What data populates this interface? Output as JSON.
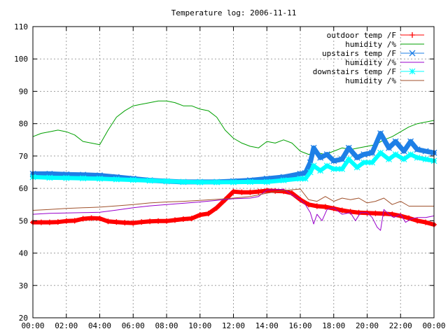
{
  "chart_data": {
    "type": "line",
    "title": "Temperature log: 2006-11-11",
    "xlabel": "",
    "ylabel": "",
    "xlim": [
      0,
      24
    ],
    "ylim": [
      20,
      110
    ],
    "grid": true,
    "legend_position": "top-right",
    "x_ticks": [
      "00:00",
      "02:00",
      "04:00",
      "06:00",
      "08:00",
      "10:00",
      "12:00",
      "14:00",
      "16:00",
      "18:00",
      "20:00",
      "22:00",
      "00:00"
    ],
    "y_ticks": [
      "20",
      "30",
      "40",
      "50",
      "60",
      "70",
      "80",
      "90",
      "100",
      "110"
    ],
    "series": [
      {
        "name": "outdoor temp /F",
        "color": "#ff0000",
        "marker": "plus",
        "width": 6,
        "x": [
          0,
          0.5,
          1,
          1.5,
          2,
          2.5,
          3,
          3.5,
          4,
          4.5,
          5,
          5.5,
          6,
          6.5,
          7,
          7.5,
          8,
          8.5,
          9,
          9.5,
          10,
          10.5,
          11,
          11.5,
          12,
          12.5,
          13,
          13.5,
          14,
          14.5,
          15,
          15.5,
          16,
          16.5,
          17,
          17.5,
          18,
          18.5,
          19,
          19.5,
          20,
          20.5,
          21,
          21.5,
          22,
          22.5,
          23,
          23.5,
          24
        ],
        "values": [
          49.5,
          49.5,
          49.5,
          49.6,
          49.9,
          50.0,
          50.6,
          50.8,
          50.7,
          49.8,
          49.6,
          49.4,
          49.3,
          49.6,
          49.8,
          49.9,
          49.9,
          50.2,
          50.5,
          50.7,
          51.8,
          52.2,
          54.0,
          56.5,
          59.0,
          58.8,
          58.8,
          59.0,
          59.3,
          59.2,
          59.1,
          58.5,
          56.5,
          55.0,
          54.5,
          54.3,
          53.8,
          53.2,
          52.8,
          52.5,
          52.4,
          52.3,
          52.2,
          52.0,
          51.5,
          50.8,
          50.0,
          49.5,
          48.8
        ]
      },
      {
        "name": "humidity /%",
        "color": "#00a000",
        "marker": "none",
        "width": 1,
        "x": [
          0,
          0.5,
          1,
          1.5,
          2,
          2.5,
          3,
          3.5,
          4,
          4.5,
          5,
          5.5,
          6,
          6.5,
          7,
          7.5,
          8,
          8.5,
          9,
          9.5,
          10,
          10.5,
          11,
          11.5,
          12,
          12.5,
          13,
          13.5,
          14,
          14.5,
          15,
          15.5,
          16,
          16.5,
          17,
          17.5,
          18,
          18.5,
          19,
          19.5,
          20,
          20.5,
          21,
          21.5,
          22,
          22.5,
          23,
          23.5,
          24
        ],
        "values": [
          76,
          77,
          77.5,
          78,
          77.5,
          76.5,
          74.5,
          74,
          73.5,
          78,
          82,
          84,
          85.5,
          86,
          86.5,
          87,
          87,
          86.5,
          85.5,
          85.5,
          84.5,
          84,
          82,
          78,
          75.5,
          74,
          73,
          72.5,
          74.5,
          74,
          75,
          74,
          71.5,
          70.5,
          71,
          70.5,
          71.5,
          72.5,
          72,
          72.5,
          73,
          73.5,
          75,
          76,
          77.5,
          79,
          80,
          80.5,
          81
        ]
      },
      {
        "name": "upstairs temp /F",
        "color": "#1e7fe6",
        "marker": "x",
        "width": 7,
        "x": [
          0,
          1,
          2,
          3,
          4,
          5,
          6,
          7,
          8,
          9,
          10,
          11,
          12,
          13,
          14,
          15,
          16,
          16.3,
          16.6,
          16.8,
          17.2,
          17.6,
          18,
          18.5,
          18.9,
          19.4,
          19.8,
          20.3,
          20.8,
          21.3,
          21.7,
          22.2,
          22.6,
          23,
          23.5,
          24
        ],
        "values": [
          64.5,
          64.5,
          64.3,
          64.2,
          64.0,
          63.5,
          63.0,
          62.5,
          62.2,
          62.0,
          62.0,
          62.0,
          62.2,
          62.5,
          63.0,
          63.5,
          64.5,
          64.7,
          68.0,
          72.5,
          69.5,
          70.5,
          68.5,
          69.0,
          72.5,
          69.5,
          70.5,
          71.0,
          77.0,
          72.5,
          74.5,
          71.5,
          74.5,
          72.0,
          71.5,
          71.0
        ]
      },
      {
        "name": "humidity /%",
        "color": "#9900cc",
        "marker": "none",
        "width": 1,
        "x": [
          0,
          1,
          2,
          3,
          4,
          5,
          6,
          7,
          8,
          9,
          10,
          11,
          12,
          13,
          13.5,
          14,
          15,
          15.5,
          16,
          16.3,
          16.6,
          16.8,
          17.0,
          17.3,
          17.6,
          18,
          18.5,
          19,
          19.3,
          19.6,
          20,
          20.3,
          20.6,
          20.8,
          21,
          21.3,
          21.6,
          22,
          22.3,
          22.6,
          23,
          23.5,
          24
        ],
        "values": [
          52,
          52.3,
          52.4,
          52.5,
          52.6,
          53.3,
          54.0,
          54.6,
          55.0,
          55.4,
          55.8,
          56.3,
          56.8,
          57.0,
          57.5,
          59.5,
          59.7,
          58.0,
          56.5,
          55.0,
          52.5,
          49.0,
          52.0,
          50.0,
          53.5,
          54.0,
          52.0,
          52.5,
          50.0,
          52.5,
          52.5,
          51.0,
          48.0,
          47.0,
          53.5,
          52.0,
          51.0,
          52.0,
          49.5,
          50.5,
          51.0,
          51.0,
          51.5
        ]
      },
      {
        "name": "downstairs temp /F",
        "color": "#00ffff",
        "marker": "star",
        "width": 6,
        "x": [
          0,
          1,
          2,
          3,
          4,
          5,
          6,
          7,
          8,
          9,
          10,
          11,
          12,
          13,
          14,
          15,
          16,
          16.3,
          16.6,
          16.8,
          17.2,
          17.6,
          18,
          18.5,
          18.9,
          19.4,
          19.8,
          20.3,
          20.8,
          21.3,
          21.7,
          22.2,
          22.6,
          23,
          23.5,
          24
        ],
        "values": [
          63.5,
          63.3,
          63.2,
          63.1,
          63.0,
          62.8,
          62.6,
          62.4,
          62.2,
          62.0,
          61.9,
          61.9,
          61.9,
          62.0,
          62.0,
          62.5,
          63.0,
          63.0,
          65.0,
          67.0,
          65.5,
          67.0,
          66.0,
          66.0,
          69.0,
          66.5,
          68.0,
          68.0,
          71.0,
          69.0,
          70.5,
          69.0,
          70.5,
          69.5,
          69.0,
          68.5
        ]
      },
      {
        "name": "humidity /%",
        "color": "#a0522d",
        "marker": "none",
        "width": 1,
        "x": [
          0,
          1,
          2,
          3,
          4,
          5,
          6,
          7,
          8,
          9,
          10,
          11,
          12,
          13,
          14,
          15,
          16,
          16.5,
          17,
          17.5,
          18,
          18.5,
          19,
          19.5,
          20,
          20.5,
          21,
          21.5,
          22,
          22.5,
          23,
          23.5,
          24
        ],
        "values": [
          53.2,
          53.5,
          53.8,
          54.0,
          54.2,
          54.6,
          55.0,
          55.5,
          55.8,
          56.0,
          56.3,
          56.6,
          57.0,
          57.5,
          58.5,
          59.3,
          59.8,
          56.5,
          56.0,
          57.5,
          56.0,
          57.0,
          56.5,
          57.0,
          55.5,
          56.0,
          57.0,
          55.0,
          56.0,
          54.5,
          54.5,
          54.5,
          54.5
        ]
      }
    ]
  }
}
